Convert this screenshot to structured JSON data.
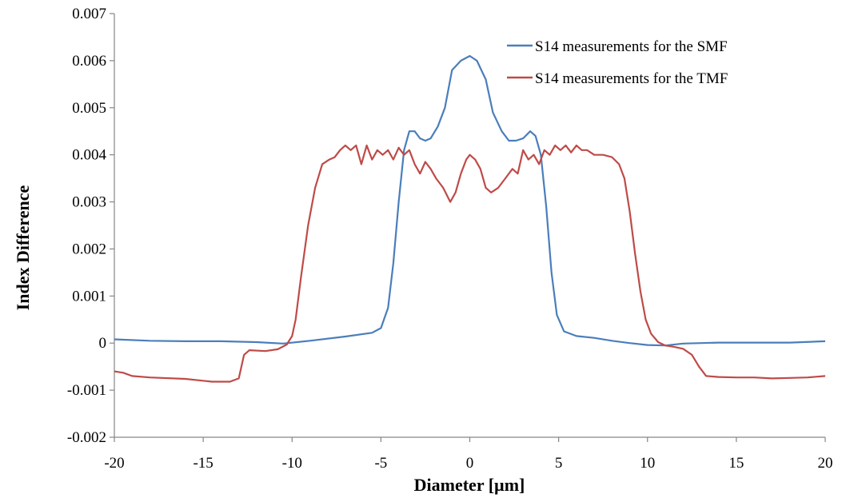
{
  "chart_data": {
    "type": "line",
    "title": "",
    "xlabel": "Diameter [µm]",
    "ylabel": "Index Difference",
    "xlim": [
      -20,
      20
    ],
    "ylim": [
      -0.002,
      0.007
    ],
    "x_ticks": [
      -20,
      -15,
      -10,
      -5,
      0,
      5,
      10,
      15,
      20
    ],
    "x_tick_labels": [
      "-20",
      "-15",
      "-10",
      "-5",
      "0",
      "5",
      "10",
      "15",
      "20"
    ],
    "y_ticks": [
      -0.002,
      -0.001,
      0,
      0.001,
      0.002,
      0.003,
      0.004,
      0.005,
      0.006,
      0.007
    ],
    "y_tick_labels": [
      "-0.002",
      "-0.001",
      "0",
      "0.001",
      "0.002",
      "0.003",
      "0.004",
      "0.005",
      "0.006",
      "0.007"
    ],
    "grid": false,
    "legend_position": "top-right",
    "series": [
      {
        "name": "S14 measurements for the SMF",
        "color": "#4a7ebb",
        "points": [
          [
            -20,
            8e-05
          ],
          [
            -18,
            5e-05
          ],
          [
            -16,
            4e-05
          ],
          [
            -14,
            4e-05
          ],
          [
            -12,
            2e-05
          ],
          [
            -10.5,
            -1e-05
          ],
          [
            -9,
            5e-05
          ],
          [
            -7,
            0.00014
          ],
          [
            -5.5,
            0.00022
          ],
          [
            -5,
            0.00032
          ],
          [
            -4.6,
            0.00075
          ],
          [
            -4.3,
            0.0017
          ],
          [
            -4,
            0.003
          ],
          [
            -3.7,
            0.0041
          ],
          [
            -3.4,
            0.0045
          ],
          [
            -3.1,
            0.0045
          ],
          [
            -2.8,
            0.00435
          ],
          [
            -2.5,
            0.0043
          ],
          [
            -2.2,
            0.00435
          ],
          [
            -1.8,
            0.0046
          ],
          [
            -1.4,
            0.005
          ],
          [
            -1,
            0.0058
          ],
          [
            -0.5,
            0.006
          ],
          [
            0,
            0.0061
          ],
          [
            0.4,
            0.006
          ],
          [
            0.9,
            0.0056
          ],
          [
            1.3,
            0.0049
          ],
          [
            1.8,
            0.0045
          ],
          [
            2.2,
            0.0043
          ],
          [
            2.6,
            0.0043
          ],
          [
            3,
            0.00435
          ],
          [
            3.4,
            0.0045
          ],
          [
            3.7,
            0.0044
          ],
          [
            4,
            0.004
          ],
          [
            4.3,
            0.0029
          ],
          [
            4.6,
            0.0015
          ],
          [
            4.9,
            0.0006
          ],
          [
            5.3,
            0.00025
          ],
          [
            6,
            0.00015
          ],
          [
            7,
            0.00011
          ],
          [
            8,
            5e-05
          ],
          [
            9,
            0.0
          ],
          [
            10,
            -4e-05
          ],
          [
            11,
            -5e-05
          ],
          [
            12,
            -1e-05
          ],
          [
            14,
            1e-05
          ],
          [
            16,
            1e-05
          ],
          [
            18,
            1e-05
          ],
          [
            20,
            4e-05
          ]
        ]
      },
      {
        "name": "S14 measurements for the TMF",
        "color": "#be4b48",
        "points": [
          [
            -20,
            -0.0006
          ],
          [
            -19.5,
            -0.00063
          ],
          [
            -19,
            -0.0007
          ],
          [
            -18,
            -0.00073
          ],
          [
            -16,
            -0.00076
          ],
          [
            -14.5,
            -0.00082
          ],
          [
            -13.5,
            -0.00082
          ],
          [
            -13,
            -0.00075
          ],
          [
            -12.7,
            -0.00025
          ],
          [
            -12.4,
            -0.00015
          ],
          [
            -11.5,
            -0.00017
          ],
          [
            -10.8,
            -0.00013
          ],
          [
            -10.3,
            -3e-05
          ],
          [
            -10,
            0.00015
          ],
          [
            -9.8,
            0.0005
          ],
          [
            -9.5,
            0.0014
          ],
          [
            -9.1,
            0.0025
          ],
          [
            -8.7,
            0.0033
          ],
          [
            -8.3,
            0.0038
          ],
          [
            -7.9,
            0.0039
          ],
          [
            -7.6,
            0.00395
          ],
          [
            -7.3,
            0.0041
          ],
          [
            -7,
            0.0042
          ],
          [
            -6.7,
            0.0041
          ],
          [
            -6.4,
            0.0042
          ],
          [
            -6.1,
            0.0038
          ],
          [
            -5.8,
            0.0042
          ],
          [
            -5.5,
            0.0039
          ],
          [
            -5.2,
            0.0041
          ],
          [
            -4.9,
            0.004
          ],
          [
            -4.6,
            0.0041
          ],
          [
            -4.3,
            0.0039
          ],
          [
            -4,
            0.00415
          ],
          [
            -3.7,
            0.004
          ],
          [
            -3.4,
            0.0041
          ],
          [
            -3.1,
            0.0038
          ],
          [
            -2.8,
            0.0036
          ],
          [
            -2.5,
            0.00385
          ],
          [
            -2.2,
            0.0037
          ],
          [
            -1.9,
            0.0035
          ],
          [
            -1.5,
            0.0033
          ],
          [
            -1.1,
            0.003
          ],
          [
            -0.8,
            0.0032
          ],
          [
            -0.5,
            0.0036
          ],
          [
            -0.2,
            0.0039
          ],
          [
            0,
            0.004
          ],
          [
            0.3,
            0.0039
          ],
          [
            0.6,
            0.0037
          ],
          [
            0.9,
            0.0033
          ],
          [
            1.2,
            0.0032
          ],
          [
            1.6,
            0.0033
          ],
          [
            2,
            0.0035
          ],
          [
            2.4,
            0.0037
          ],
          [
            2.7,
            0.0036
          ],
          [
            3,
            0.0041
          ],
          [
            3.3,
            0.0039
          ],
          [
            3.6,
            0.004
          ],
          [
            3.9,
            0.0038
          ],
          [
            4.2,
            0.0041
          ],
          [
            4.5,
            0.004
          ],
          [
            4.8,
            0.0042
          ],
          [
            5.1,
            0.0041
          ],
          [
            5.4,
            0.0042
          ],
          [
            5.7,
            0.00405
          ],
          [
            6,
            0.0042
          ],
          [
            6.3,
            0.0041
          ],
          [
            6.6,
            0.0041
          ],
          [
            7,
            0.004
          ],
          [
            7.5,
            0.004
          ],
          [
            8,
            0.00395
          ],
          [
            8.4,
            0.0038
          ],
          [
            8.7,
            0.0035
          ],
          [
            9,
            0.0028
          ],
          [
            9.3,
            0.0019
          ],
          [
            9.6,
            0.0011
          ],
          [
            9.9,
            0.0005
          ],
          [
            10.2,
            0.0002
          ],
          [
            10.6,
            2e-05
          ],
          [
            11,
            -5e-05
          ],
          [
            11.5,
            -8e-05
          ],
          [
            12,
            -0.00012
          ],
          [
            12.5,
            -0.00025
          ],
          [
            12.9,
            -0.0005
          ],
          [
            13.3,
            -0.0007
          ],
          [
            14,
            -0.00072
          ],
          [
            15,
            -0.00073
          ],
          [
            16,
            -0.00073
          ],
          [
            17,
            -0.00075
          ],
          [
            18,
            -0.00074
          ],
          [
            19,
            -0.00073
          ],
          [
            20,
            -0.0007
          ]
        ]
      }
    ]
  }
}
